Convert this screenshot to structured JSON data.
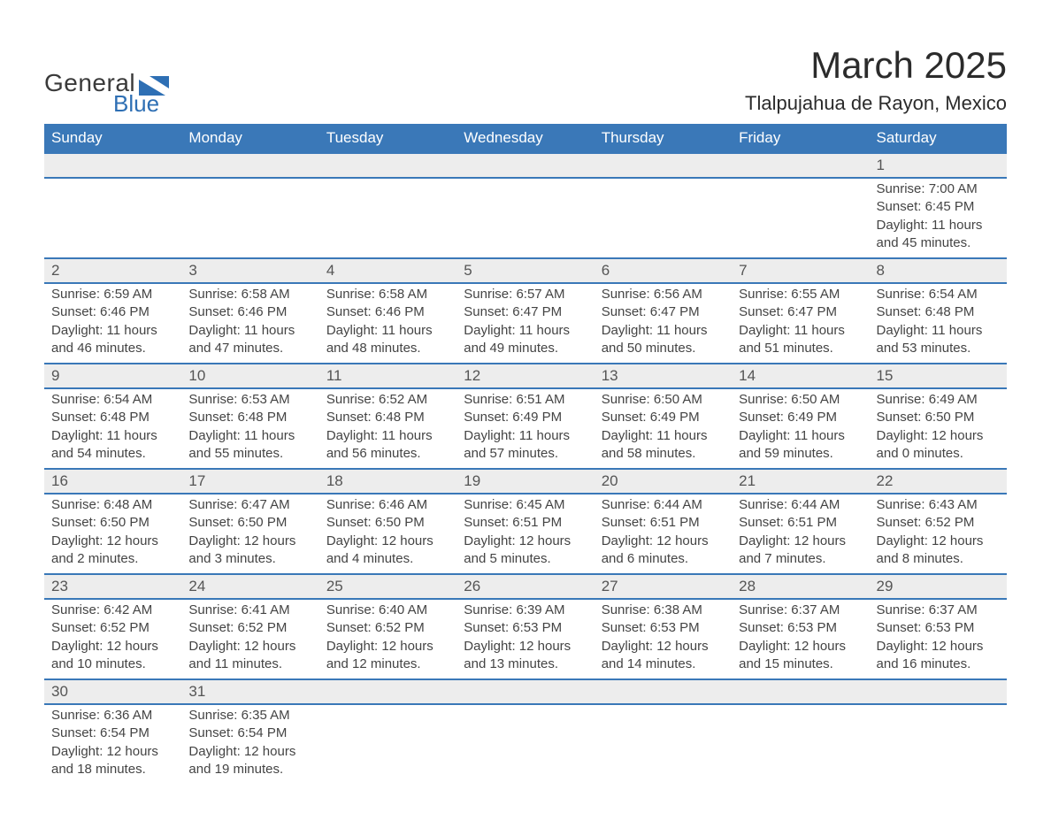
{
  "brand": {
    "word1": "General",
    "word2": "Blue",
    "accent_color": "#2e6fb4"
  },
  "title": "March 2025",
  "location": "Tlalpujahua de Rayon, Mexico",
  "colors": {
    "header_bg": "#3a78b8",
    "header_text": "#ffffff",
    "daynum_bg": "#ededed",
    "rule": "#3a78b8",
    "text": "#3a3a3a"
  },
  "daysOfWeek": [
    "Sunday",
    "Monday",
    "Tuesday",
    "Wednesday",
    "Thursday",
    "Friday",
    "Saturday"
  ],
  "weeks": [
    [
      null,
      null,
      null,
      null,
      null,
      null,
      {
        "n": "1",
        "sunrise": "Sunrise: 7:00 AM",
        "sunset": "Sunset: 6:45 PM",
        "daylight": "Daylight: 11 hours and 45 minutes."
      }
    ],
    [
      {
        "n": "2",
        "sunrise": "Sunrise: 6:59 AM",
        "sunset": "Sunset: 6:46 PM",
        "daylight": "Daylight: 11 hours and 46 minutes."
      },
      {
        "n": "3",
        "sunrise": "Sunrise: 6:58 AM",
        "sunset": "Sunset: 6:46 PM",
        "daylight": "Daylight: 11 hours and 47 minutes."
      },
      {
        "n": "4",
        "sunrise": "Sunrise: 6:58 AM",
        "sunset": "Sunset: 6:46 PM",
        "daylight": "Daylight: 11 hours and 48 minutes."
      },
      {
        "n": "5",
        "sunrise": "Sunrise: 6:57 AM",
        "sunset": "Sunset: 6:47 PM",
        "daylight": "Daylight: 11 hours and 49 minutes."
      },
      {
        "n": "6",
        "sunrise": "Sunrise: 6:56 AM",
        "sunset": "Sunset: 6:47 PM",
        "daylight": "Daylight: 11 hours and 50 minutes."
      },
      {
        "n": "7",
        "sunrise": "Sunrise: 6:55 AM",
        "sunset": "Sunset: 6:47 PM",
        "daylight": "Daylight: 11 hours and 51 minutes."
      },
      {
        "n": "8",
        "sunrise": "Sunrise: 6:54 AM",
        "sunset": "Sunset: 6:48 PM",
        "daylight": "Daylight: 11 hours and 53 minutes."
      }
    ],
    [
      {
        "n": "9",
        "sunrise": "Sunrise: 6:54 AM",
        "sunset": "Sunset: 6:48 PM",
        "daylight": "Daylight: 11 hours and 54 minutes."
      },
      {
        "n": "10",
        "sunrise": "Sunrise: 6:53 AM",
        "sunset": "Sunset: 6:48 PM",
        "daylight": "Daylight: 11 hours and 55 minutes."
      },
      {
        "n": "11",
        "sunrise": "Sunrise: 6:52 AM",
        "sunset": "Sunset: 6:48 PM",
        "daylight": "Daylight: 11 hours and 56 minutes."
      },
      {
        "n": "12",
        "sunrise": "Sunrise: 6:51 AM",
        "sunset": "Sunset: 6:49 PM",
        "daylight": "Daylight: 11 hours and 57 minutes."
      },
      {
        "n": "13",
        "sunrise": "Sunrise: 6:50 AM",
        "sunset": "Sunset: 6:49 PM",
        "daylight": "Daylight: 11 hours and 58 minutes."
      },
      {
        "n": "14",
        "sunrise": "Sunrise: 6:50 AM",
        "sunset": "Sunset: 6:49 PM",
        "daylight": "Daylight: 11 hours and 59 minutes."
      },
      {
        "n": "15",
        "sunrise": "Sunrise: 6:49 AM",
        "sunset": "Sunset: 6:50 PM",
        "daylight": "Daylight: 12 hours and 0 minutes."
      }
    ],
    [
      {
        "n": "16",
        "sunrise": "Sunrise: 6:48 AM",
        "sunset": "Sunset: 6:50 PM",
        "daylight": "Daylight: 12 hours and 2 minutes."
      },
      {
        "n": "17",
        "sunrise": "Sunrise: 6:47 AM",
        "sunset": "Sunset: 6:50 PM",
        "daylight": "Daylight: 12 hours and 3 minutes."
      },
      {
        "n": "18",
        "sunrise": "Sunrise: 6:46 AM",
        "sunset": "Sunset: 6:50 PM",
        "daylight": "Daylight: 12 hours and 4 minutes."
      },
      {
        "n": "19",
        "sunrise": "Sunrise: 6:45 AM",
        "sunset": "Sunset: 6:51 PM",
        "daylight": "Daylight: 12 hours and 5 minutes."
      },
      {
        "n": "20",
        "sunrise": "Sunrise: 6:44 AM",
        "sunset": "Sunset: 6:51 PM",
        "daylight": "Daylight: 12 hours and 6 minutes."
      },
      {
        "n": "21",
        "sunrise": "Sunrise: 6:44 AM",
        "sunset": "Sunset: 6:51 PM",
        "daylight": "Daylight: 12 hours and 7 minutes."
      },
      {
        "n": "22",
        "sunrise": "Sunrise: 6:43 AM",
        "sunset": "Sunset: 6:52 PM",
        "daylight": "Daylight: 12 hours and 8 minutes."
      }
    ],
    [
      {
        "n": "23",
        "sunrise": "Sunrise: 6:42 AM",
        "sunset": "Sunset: 6:52 PM",
        "daylight": "Daylight: 12 hours and 10 minutes."
      },
      {
        "n": "24",
        "sunrise": "Sunrise: 6:41 AM",
        "sunset": "Sunset: 6:52 PM",
        "daylight": "Daylight: 12 hours and 11 minutes."
      },
      {
        "n": "25",
        "sunrise": "Sunrise: 6:40 AM",
        "sunset": "Sunset: 6:52 PM",
        "daylight": "Daylight: 12 hours and 12 minutes."
      },
      {
        "n": "26",
        "sunrise": "Sunrise: 6:39 AM",
        "sunset": "Sunset: 6:53 PM",
        "daylight": "Daylight: 12 hours and 13 minutes."
      },
      {
        "n": "27",
        "sunrise": "Sunrise: 6:38 AM",
        "sunset": "Sunset: 6:53 PM",
        "daylight": "Daylight: 12 hours and 14 minutes."
      },
      {
        "n": "28",
        "sunrise": "Sunrise: 6:37 AM",
        "sunset": "Sunset: 6:53 PM",
        "daylight": "Daylight: 12 hours and 15 minutes."
      },
      {
        "n": "29",
        "sunrise": "Sunrise: 6:37 AM",
        "sunset": "Sunset: 6:53 PM",
        "daylight": "Daylight: 12 hours and 16 minutes."
      }
    ],
    [
      {
        "n": "30",
        "sunrise": "Sunrise: 6:36 AM",
        "sunset": "Sunset: 6:54 PM",
        "daylight": "Daylight: 12 hours and 18 minutes."
      },
      {
        "n": "31",
        "sunrise": "Sunrise: 6:35 AM",
        "sunset": "Sunset: 6:54 PM",
        "daylight": "Daylight: 12 hours and 19 minutes."
      },
      null,
      null,
      null,
      null,
      null
    ]
  ]
}
